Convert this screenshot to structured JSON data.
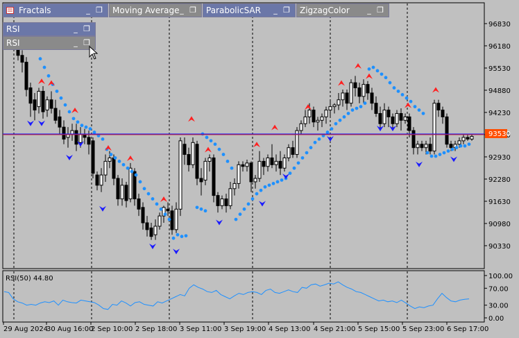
{
  "windows": {
    "fractals": "Fractals",
    "moving_average": "Moving Average",
    "parabolic_sar": "ParabolicSAR",
    "zigzag_color": "ZigzagColor",
    "rsi_1": "RSI",
    "rsi_2": "RSI",
    "min_glyph": "_",
    "max_glyph": "❐"
  },
  "price_axis": {
    "labels": [
      "96830",
      "96180",
      "95530",
      "94880",
      "94230",
      "93580",
      "92930",
      "92280",
      "91630",
      "90980",
      "90330"
    ],
    "values": [
      96830,
      96180,
      95530,
      94880,
      94230,
      93580,
      92930,
      92280,
      91630,
      90980,
      90330
    ],
    "current_price": "93530",
    "current_price_value": 93530,
    "current_color": "#ff4d00"
  },
  "rsi_panel": {
    "title": "RSI(50) 44.80",
    "labels": [
      "100.00",
      "70.00",
      "30.00",
      "0.00"
    ],
    "values": [
      100,
      70,
      30,
      0
    ],
    "line_color": "#1e90ff"
  },
  "time_axis": {
    "labels": [
      "29 Aug 2024",
      "30 Aug 16:00",
      "2 Sep 10:00",
      "2 Sep 18:00",
      "3 Sep 11:00",
      "3 Sep 19:00",
      "4 Sep 13:00",
      "4 Sep 21:00",
      "5 Sep 15:00",
      "5 Sep 23:00",
      "6 Sep 17:00"
    ]
  },
  "colors": {
    "background": "#c0c0c0",
    "sar_dots": "#1e90ff",
    "fractal_up": "#ff2020",
    "fractal_down": "#1a1aff",
    "horizontal_line": "#1a1aff",
    "bull_candle": "#ffffff",
    "bear_candle": "#000000"
  }
}
